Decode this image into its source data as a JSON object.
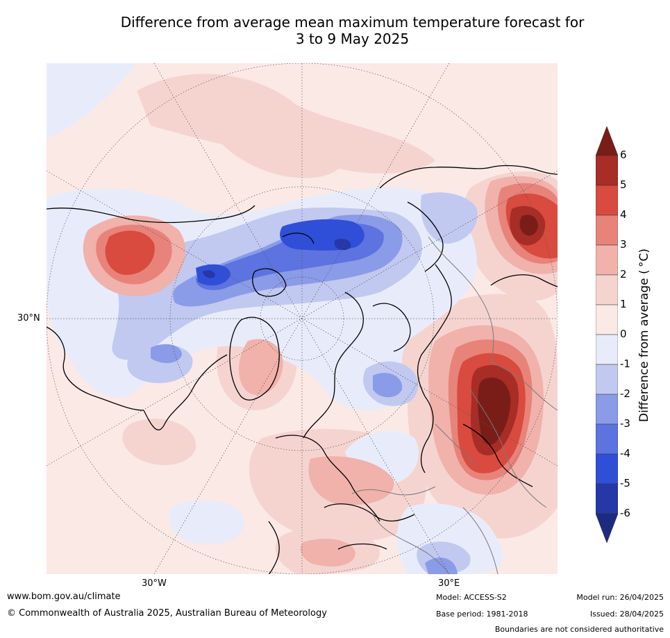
{
  "title_line1": "Difference from average mean maximum temperature forecast for",
  "title_line2": "3 to 9 May 2025",
  "graticule_labels": {
    "lat_30n": "30°N",
    "lon_30w": "30°W",
    "lon_30e": "30°E"
  },
  "colorbar": {
    "title": "Difference from average ( °C)",
    "ticks": [
      "6",
      "5",
      "4",
      "3",
      "2",
      "1",
      "0",
      "-1",
      "-2",
      "-3",
      "-4",
      "-5",
      "-6"
    ],
    "bands_top_to_bottom": [
      {
        "range": ">6",
        "color": "#7a1d18"
      },
      {
        "range": "5 to 6",
        "color": "#a72d26"
      },
      {
        "range": "4 to 5",
        "color": "#d84b3e"
      },
      {
        "range": "3 to 4",
        "color": "#e8837a"
      },
      {
        "range": "2 to 3",
        "color": "#f0b2ab"
      },
      {
        "range": "1 to 2",
        "color": "#f5d4d0"
      },
      {
        "range": "0 to 1",
        "color": "#fbe9e6"
      },
      {
        "range": "-1 to 0",
        "color": "#e8ecfa"
      },
      {
        "range": "-2 to -1",
        "color": "#c1c9f1"
      },
      {
        "range": "-3 to -2",
        "color": "#8a9be8"
      },
      {
        "range": "-4 to -3",
        "color": "#5c73e0"
      },
      {
        "range": "-5 to -4",
        "color": "#2f4fd8"
      },
      {
        "range": "-6 to -5",
        "color": "#2637a8"
      },
      {
        "range": "<-6",
        "color": "#1c2a80"
      }
    ]
  },
  "footer": {
    "website": "www.bom.gov.au/climate",
    "copyright": "© Commonwealth of Australia 2025, Australian Bureau of Meteorology",
    "model": "Model: ACCESS-S2",
    "base_period": "Base period: 1981-2018",
    "model_run": "Model run: 26/04/2025",
    "issued": "Issued: 28/04/2025",
    "disclaimer": "Boundaries are not considered authoritative"
  }
}
